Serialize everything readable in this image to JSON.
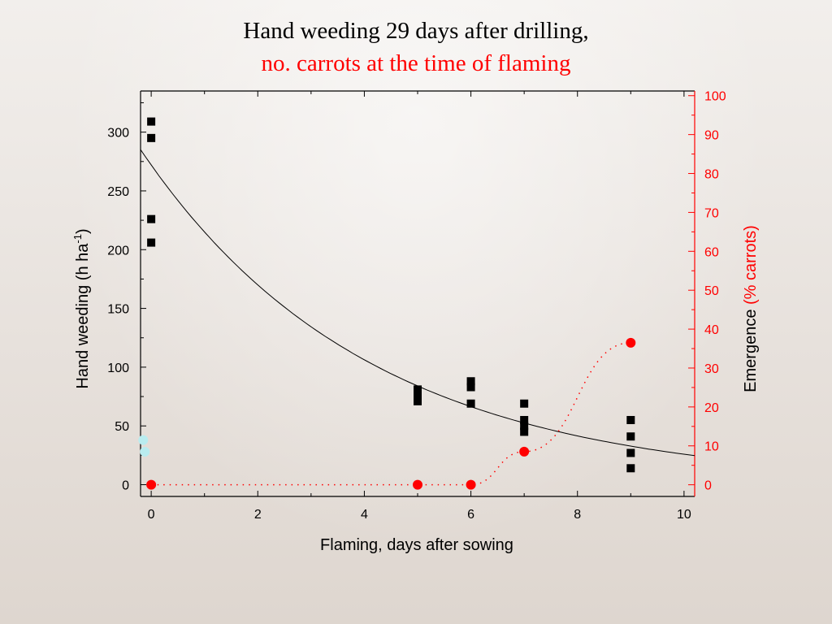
{
  "title": "Hand weeding 29 days after drilling,",
  "subtitle": "no. carrots at the time of flaming",
  "colors": {
    "primary_axis": "#000000",
    "secondary_axis": "#ff0000",
    "faded_point": "#b9ecef"
  },
  "chart_data": {
    "type": "scatter",
    "xlabel": "Flaming, days after sowing",
    "ylabel_main": "Hand weeding (h ha",
    "ylabel_sup": "-1",
    "ylabel_close": ")",
    "y2label_black": "Emergence ",
    "y2label_red": "(% carrots)",
    "xlim": [
      -0.2,
      10.2
    ],
    "ylim": [
      -10,
      335
    ],
    "y2lim": [
      -3.0,
      101.2
    ],
    "x_ticks": [
      0,
      2,
      4,
      6,
      8,
      10
    ],
    "y_ticks": [
      0,
      50,
      100,
      150,
      200,
      250,
      300
    ],
    "y2_ticks": [
      0,
      10,
      20,
      30,
      40,
      50,
      60,
      70,
      80,
      90,
      100
    ],
    "series": [
      {
        "axis": "left",
        "marker": "square",
        "color": "#000000",
        "points": [
          [
            0,
            309
          ],
          [
            0,
            295
          ],
          [
            0,
            226
          ],
          [
            0,
            206
          ],
          [
            5,
            81
          ],
          [
            5,
            76
          ],
          [
            5,
            71
          ],
          [
            6,
            88
          ],
          [
            6,
            83
          ],
          [
            6,
            69
          ],
          [
            7,
            69
          ],
          [
            7,
            55
          ],
          [
            7,
            50
          ],
          [
            7,
            45
          ],
          [
            9,
            55
          ],
          [
            9,
            41
          ],
          [
            9,
            27
          ],
          [
            9,
            14
          ]
        ]
      },
      {
        "axis": "left",
        "marker": "circle",
        "color": "#b9ecef",
        "points": [
          [
            -0.15,
            38
          ],
          [
            -0.12,
            28
          ]
        ]
      },
      {
        "axis": "right",
        "marker": "circle",
        "color": "#ff0000",
        "line": "dotted",
        "points": [
          [
            0,
            0
          ],
          [
            5,
            0
          ],
          [
            6,
            0
          ],
          [
            7,
            8.5
          ],
          [
            9,
            36.5
          ]
        ]
      },
      {
        "axis": "left",
        "type": "line",
        "fit": "exponential",
        "color": "#000000",
        "a": 272,
        "b": 0.235,
        "x_range": [
          -0.2,
          10.2
        ]
      }
    ]
  }
}
